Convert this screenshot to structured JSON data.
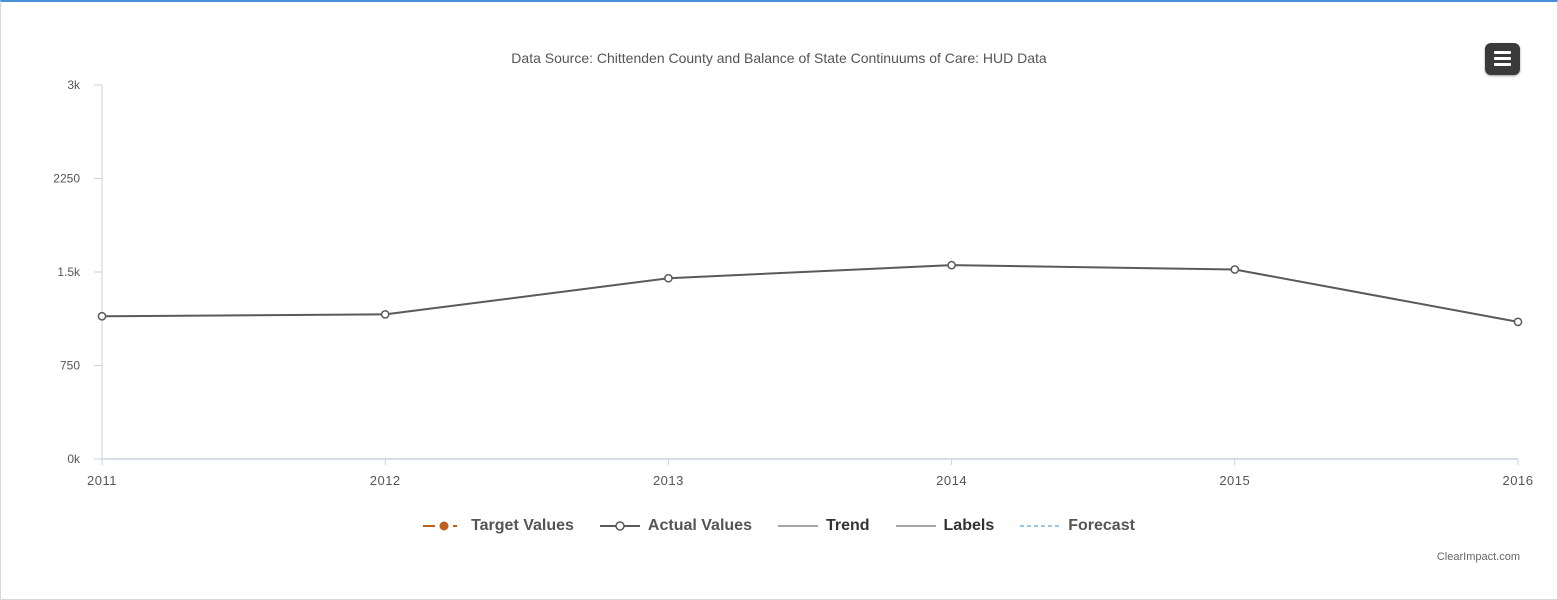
{
  "chart_data": {
    "type": "line",
    "subtitle": "Data Source: Chittenden County and Balance of State Continuums of Care: HUD Data",
    "x": [
      "2011",
      "2012",
      "2013",
      "2014",
      "2015",
      "2016"
    ],
    "series": [
      {
        "name": "Actual Values",
        "values": [
          1145,
          1160,
          1450,
          1555,
          1520,
          1100
        ],
        "color": "#5a5a5a"
      }
    ],
    "y_ticks": [
      "0k",
      "750",
      "1.5k",
      "2250",
      "3k"
    ],
    "ylim": [
      0,
      3000
    ],
    "grid": false
  },
  "legend": [
    {
      "label": "Target Values",
      "symbol": "target",
      "color": "#c0601f"
    },
    {
      "label": "Actual Values",
      "symbol": "actual",
      "color": "#5a5a5a"
    },
    {
      "label": "Trend",
      "symbol": "line",
      "color": "#888888"
    },
    {
      "label": "Labels",
      "symbol": "line",
      "color": "#888888"
    },
    {
      "label": "Forecast",
      "symbol": "dashed",
      "color": "#7fb3d9"
    }
  ],
  "credit": "ClearImpact.com",
  "menu_icon": "hamburger-menu-icon"
}
